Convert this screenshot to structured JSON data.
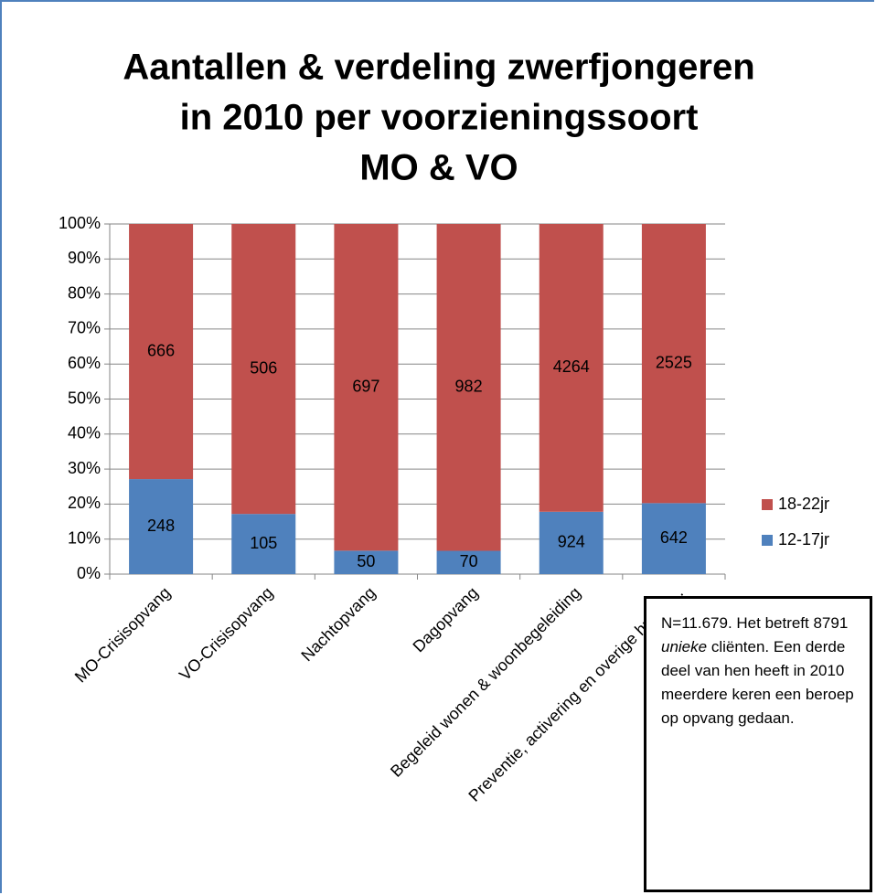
{
  "chart_data": {
    "type": "bar",
    "stacking": "percent",
    "title": [
      "Aantallen & verdeling zwerfjongeren",
      "in 2010 per voorzieningssoort",
      "MO & VO"
    ],
    "categories": [
      "MO-Crisisopvang",
      "VO-Crisisopvang",
      "Nachtopvang",
      "Dagopvang",
      "Begeleid wonen & woonbegeleiding",
      "Preventie, activering en overige hulp &..."
    ],
    "series": [
      {
        "name": "12-17jr",
        "color": "#4f81bd",
        "values": [
          248,
          105,
          50,
          70,
          924,
          642
        ]
      },
      {
        "name": "18-22jr",
        "color": "#c0504d",
        "values": [
          666,
          506,
          697,
          982,
          4264,
          2525
        ]
      }
    ],
    "ylim": [
      0,
      100
    ],
    "yticks": [
      {
        "value": 0,
        "label": "0%"
      },
      {
        "value": 10,
        "label": "10%"
      },
      {
        "value": 20,
        "label": "20%"
      },
      {
        "value": 30,
        "label": "30%"
      },
      {
        "value": 40,
        "label": "40%"
      },
      {
        "value": 50,
        "label": "50%"
      },
      {
        "value": 60,
        "label": "60%"
      },
      {
        "value": 70,
        "label": "70%"
      },
      {
        "value": 80,
        "label": "80%"
      },
      {
        "value": 90,
        "label": "90%"
      },
      {
        "value": 100,
        "label": "100%"
      }
    ],
    "grid": true,
    "legend": "right",
    "annotation": [
      "N=11.679. Het betreft 8791 ",
      "unieke",
      " cliënten. Een derde deel van hen heeft in 2010 meerdere keren een beroep op opvang gedaan."
    ]
  }
}
